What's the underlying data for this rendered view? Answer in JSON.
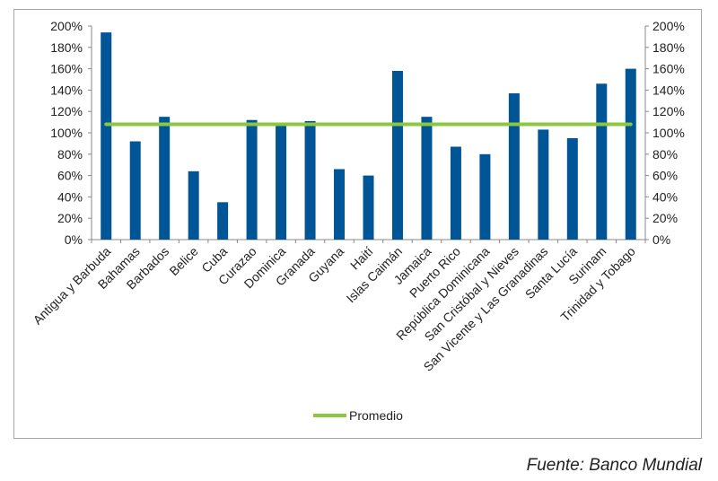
{
  "chart_data": {
    "type": "bar",
    "categories": [
      "Antigua y Barbuda",
      "Bahamas",
      "Barbados",
      "Belice",
      "Cuba",
      "Curazao",
      "Dominica",
      "Granada",
      "Guyana",
      "Haití",
      "Islas Caimán",
      "Jamaica",
      "Puerto Rico",
      "República Dominicana",
      "San Cristóbal y Nieves",
      "San Vicente y Las Granadinas",
      "Santa Lucía",
      "Surinam",
      "Trinidad y Tobago"
    ],
    "series": [
      {
        "values": [
          194,
          92,
          115,
          64,
          35,
          112,
          108,
          111,
          66,
          60,
          158,
          115,
          87,
          80,
          137,
          103,
          95,
          146,
          160
        ],
        "color": "#005596"
      },
      {
        "name": "Promedio",
        "type": "line",
        "values": [
          108,
          108,
          108,
          108,
          108,
          108,
          108,
          108,
          108,
          108,
          108,
          108,
          108,
          108,
          108,
          108,
          108,
          108,
          108
        ],
        "color": "#8dc63f"
      }
    ],
    "ylim": [
      0,
      200
    ],
    "yticks": [
      "0%",
      "20%",
      "40%",
      "60%",
      "80%",
      "100%",
      "120%",
      "140%",
      "160%",
      "180%",
      "200%"
    ],
    "secondary_yticks": [
      "0%",
      "20%",
      "40%",
      "60%",
      "80%",
      "100%",
      "120%",
      "140%",
      "160%",
      "180%",
      "200%"
    ],
    "grid": false,
    "legend_position": "bottom"
  },
  "source_text": "Fuente: Banco Mundial"
}
